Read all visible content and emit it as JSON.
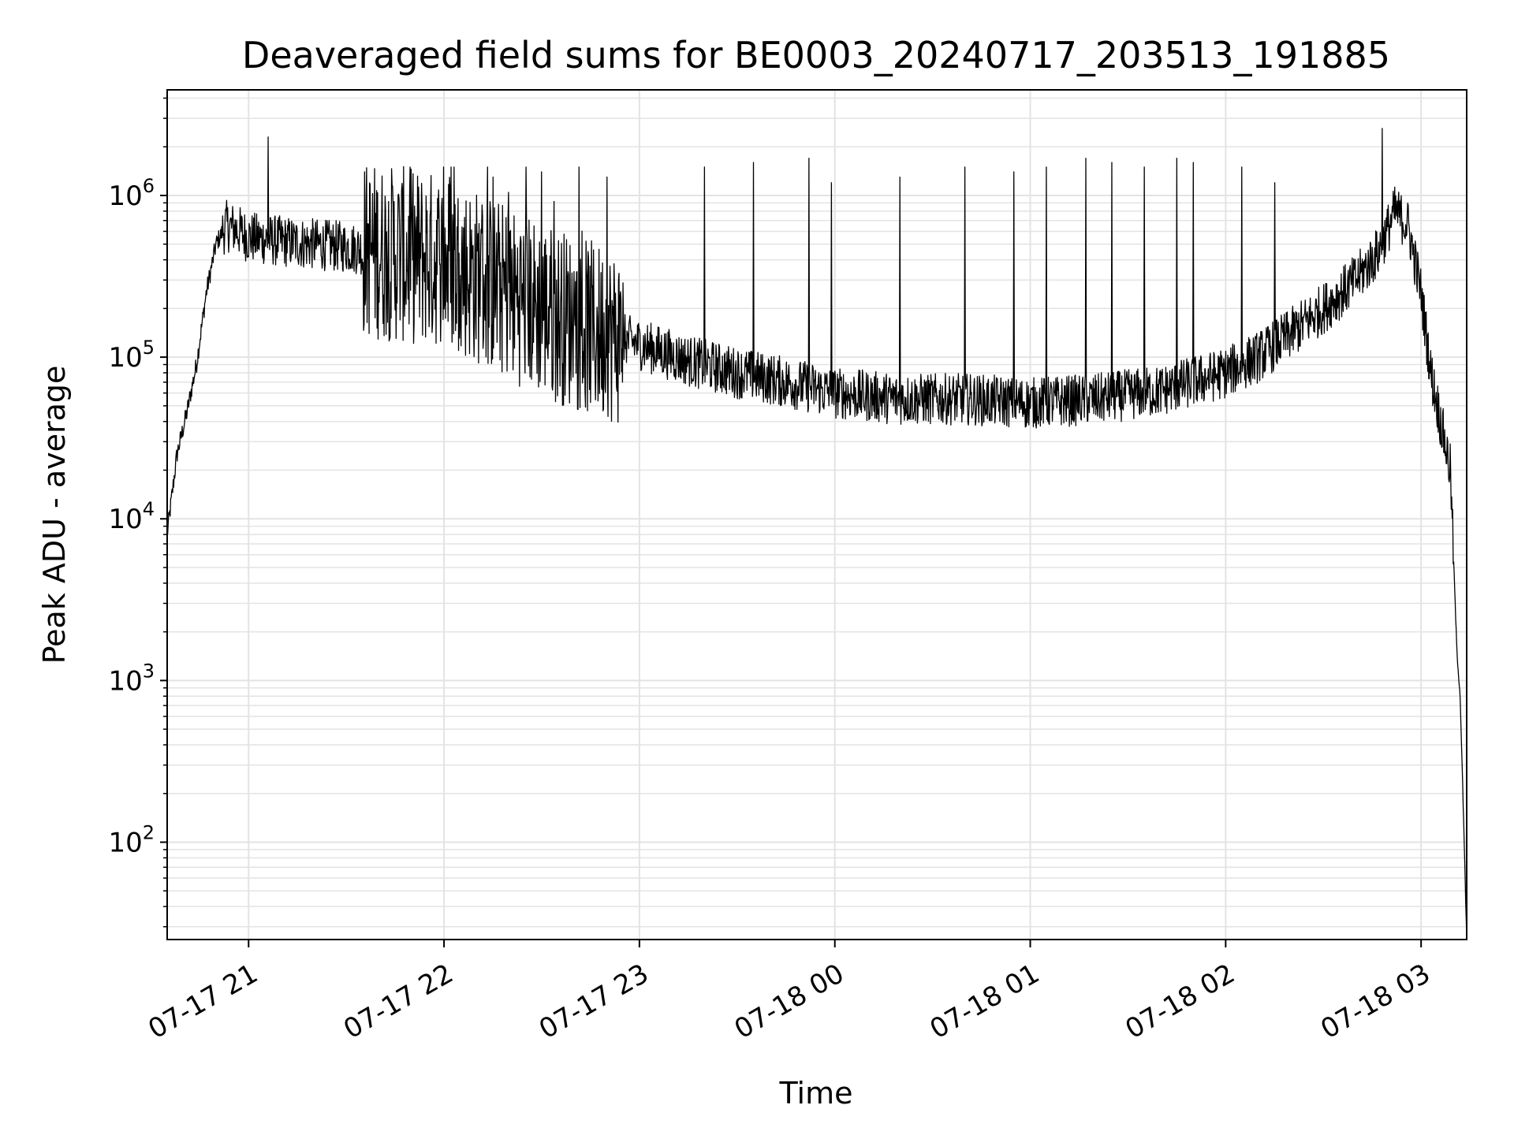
{
  "chart_data": {
    "type": "line",
    "title": "Deaveraged field sums for BE0003_20240717_203513_191885",
    "xlabel": "Time",
    "ylabel": "Peak ADU - average",
    "x_ticks": [
      "07-17 21",
      "07-17 22",
      "07-17 23",
      "07-18 00",
      "07-18 01",
      "07-18 02",
      "07-18 03"
    ],
    "x_tick_times": [
      "2024-07-17T21:00",
      "2024-07-17T22:00",
      "2024-07-17T23:00",
      "2024-07-18T00:00",
      "2024-07-18T01:00",
      "2024-07-18T02:00",
      "2024-07-18T03:00"
    ],
    "xlim": [
      "2024-07-17T20:35",
      "2024-07-18T03:14"
    ],
    "y_scale": "log",
    "ylim": [
      25,
      4500000
    ],
    "y_ticks": [
      {
        "base": "10",
        "exp": "2",
        "value": 100
      },
      {
        "base": "10",
        "exp": "3",
        "value": 1000
      },
      {
        "base": "10",
        "exp": "4",
        "value": 10000
      },
      {
        "base": "10",
        "exp": "5",
        "value": 100000
      },
      {
        "base": "10",
        "exp": "6",
        "value": 1000000
      }
    ],
    "grid": true,
    "line_color": "#000000",
    "grid_color": "#e3e3e3",
    "series": [
      {
        "baseline": {
          "x": [
            "2024-07-17T20:35",
            "2024-07-17T20:38",
            "2024-07-17T20:41",
            "2024-07-17T20:44",
            "2024-07-17T20:47",
            "2024-07-17T20:50",
            "2024-07-17T20:53",
            "2024-07-17T20:56",
            "2024-07-17T21:00",
            "2024-07-17T21:10",
            "2024-07-17T21:20",
            "2024-07-17T21:30",
            "2024-07-17T21:40",
            "2024-07-17T21:50",
            "2024-07-17T22:00",
            "2024-07-17T22:15",
            "2024-07-17T22:30",
            "2024-07-17T22:45",
            "2024-07-17T23:00",
            "2024-07-17T23:15",
            "2024-07-17T23:30",
            "2024-07-17T23:45",
            "2024-07-18T00:00",
            "2024-07-18T00:20",
            "2024-07-18T00:40",
            "2024-07-18T01:00",
            "2024-07-18T01:20",
            "2024-07-18T01:40",
            "2024-07-18T02:00",
            "2024-07-18T02:10",
            "2024-07-18T02:20",
            "2024-07-18T02:30",
            "2024-07-18T02:40",
            "2024-07-18T02:47",
            "2024-07-18T02:52",
            "2024-07-18T02:56",
            "2024-07-18T03:00",
            "2024-07-18T03:03",
            "2024-07-18T03:06",
            "2024-07-18T03:09",
            "2024-07-18T03:11",
            "2024-07-18T03:12",
            "2024-07-18T03:13",
            "2024-07-18T03:14"
          ],
          "y": [
            8000,
            25000,
            45000,
            90000,
            250000,
            500000,
            650000,
            620000,
            550000,
            520000,
            500000,
            480000,
            450000,
            420000,
            400000,
            280000,
            200000,
            150000,
            120000,
            95000,
            80000,
            70000,
            60000,
            55000,
            55000,
            52000,
            55000,
            62000,
            80000,
            100000,
            140000,
            200000,
            300000,
            450000,
            800000,
            650000,
            250000,
            80000,
            40000,
            20000,
            1500,
            800,
            150,
            25
          ]
        },
        "spikes": {
          "x": [
            "2024-07-17T21:06",
            "2024-07-17T22:15",
            "2024-07-17T22:30",
            "2024-07-17T22:50",
            "2024-07-17T23:20",
            "2024-07-17T23:35",
            "2024-07-17T23:52",
            "2024-07-17T23:59",
            "2024-07-18T00:20",
            "2024-07-18T00:40",
            "2024-07-18T00:55",
            "2024-07-18T01:05",
            "2024-07-18T01:17",
            "2024-07-18T01:25",
            "2024-07-18T01:35",
            "2024-07-18T01:45",
            "2024-07-18T01:50",
            "2024-07-18T02:05",
            "2024-07-18T02:15",
            "2024-07-18T02:48"
          ],
          "y": [
            2300000,
            1300000,
            1400000,
            1300000,
            1500000,
            1600000,
            1700000,
            1200000,
            1300000,
            1500000,
            1400000,
            1500000,
            1700000,
            1600000,
            1500000,
            1700000,
            1600000,
            1500000,
            1200000,
            2600000
          ]
        }
      }
    ]
  }
}
